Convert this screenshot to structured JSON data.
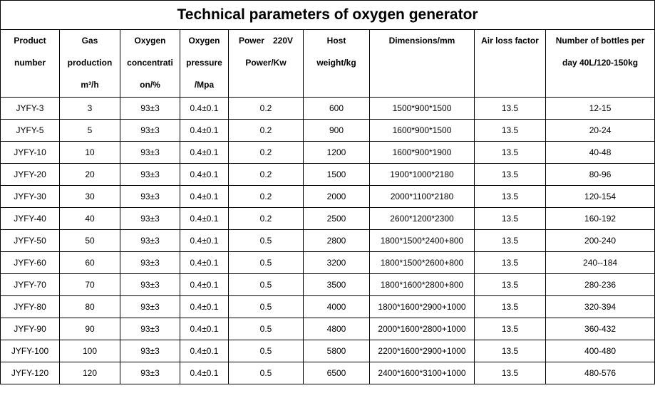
{
  "title": "Technical parameters of oxygen generator",
  "table": {
    "header": [
      [
        "Product",
        "number"
      ],
      [
        "Gas",
        "production",
        "m³/h"
      ],
      [
        "Oxygen",
        "concentrati",
        "on/%"
      ],
      [
        "Oxygen",
        "pressure",
        "/Mpa"
      ],
      [
        "Power　220V",
        "Power/Kw"
      ],
      [
        "Host",
        "weight/kg"
      ],
      [
        "Dimensions/mm"
      ],
      [
        "Air loss factor"
      ],
      [
        "Number of bottles per",
        "day 40L/120-150kg"
      ]
    ],
    "rows": [
      [
        "JYFY-3",
        "3",
        "93±3",
        "0.4±0.1",
        "0.2",
        "600",
        "1500*900*1500",
        "13.5",
        "12-15"
      ],
      [
        "JYFY-5",
        "5",
        "93±3",
        "0.4±0.1",
        "0.2",
        "900",
        "1600*900*1500",
        "13.5",
        "20-24"
      ],
      [
        "JYFY-10",
        "10",
        "93±3",
        "0.4±0.1",
        "0.2",
        "1200",
        "1600*900*1900",
        "13.5",
        "40-48"
      ],
      [
        "JYFY-20",
        "20",
        "93±3",
        "0.4±0.1",
        "0.2",
        "1500",
        "1900*1000*2180",
        "13.5",
        "80-96"
      ],
      [
        "JYFY-30",
        "30",
        "93±3",
        "0.4±0.1",
        "0.2",
        "2000",
        "2000*1100*2180",
        "13.5",
        "120-154"
      ],
      [
        "JYFY-40",
        "40",
        "93±3",
        "0.4±0.1",
        "0.2",
        "2500",
        "2600*1200*2300",
        "13.5",
        "160-192"
      ],
      [
        "JYFY-50",
        "50",
        "93±3",
        "0.4±0.1",
        "0.5",
        "2800",
        "1800*1500*2400+800",
        "13.5",
        "200-240"
      ],
      [
        "JYFY-60",
        "60",
        "93±3",
        "0.4±0.1",
        "0.5",
        "3200",
        "1800*1500*2600+800",
        "13.5",
        "240--184"
      ],
      [
        "JYFY-70",
        "70",
        "93±3",
        "0.4±0.1",
        "0.5",
        "3500",
        "1800*1600*2800+800",
        "13.5",
        "280-236"
      ],
      [
        "JYFY-80",
        "80",
        "93±3",
        "0.4±0.1",
        "0.5",
        "4000",
        "1800*1600*2900+1000",
        "13.5",
        "320-394"
      ],
      [
        "JYFY-90",
        "90",
        "93±3",
        "0.4±0.1",
        "0.5",
        "4800",
        "2000*1600*2800+1000",
        "13.5",
        "360-432"
      ],
      [
        "JYFY-100",
        "100",
        "93±3",
        "0.4±0.1",
        "0.5",
        "5800",
        "2200*1600*2900+1000",
        "13.5",
        "400-480"
      ],
      [
        "JYFY-120",
        "120",
        "93±3",
        "0.4±0.1",
        "0.5",
        "6500",
        "2400*1600*3100+1000",
        "13.5",
        "480-576"
      ]
    ]
  }
}
